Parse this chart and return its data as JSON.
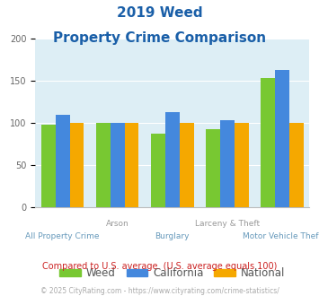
{
  "title_line1": "2019 Weed",
  "title_line2": "Property Crime Comparison",
  "categories": [
    "All Property Crime",
    "Arson",
    "Burglary",
    "Larceny & Theft",
    "Motor Vehicle Theft"
  ],
  "weed": [
    98,
    100,
    87,
    92,
    153
  ],
  "california": [
    110,
    100,
    113,
    103,
    163
  ],
  "national": [
    100,
    100,
    100,
    100,
    100
  ],
  "weed_color": "#78c832",
  "california_color": "#4488dd",
  "national_color": "#f5a800",
  "title_color": "#1a5fa8",
  "xtick_top_color": "#999999",
  "xtick_bot_color": "#6699bb",
  "subtitle_note": "Compared to U.S. average. (U.S. average equals 100)",
  "footer": "© 2025 CityRating.com - https://www.cityrating.com/crime-statistics/",
  "ylim": [
    0,
    200
  ],
  "yticks": [
    0,
    50,
    100,
    150,
    200
  ],
  "bg_color": "#ddeef5",
  "legend_text_color": "#555555"
}
